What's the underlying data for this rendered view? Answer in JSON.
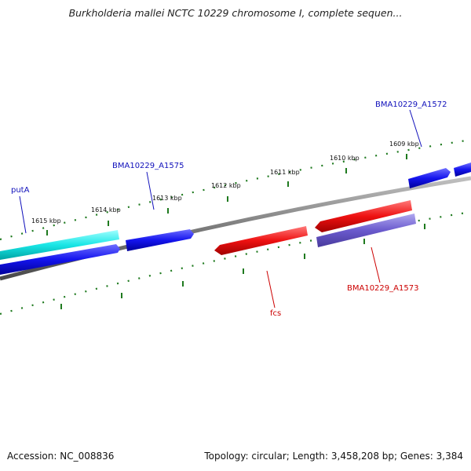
{
  "title": "Burkholderia mallei NCTC 10229 chromosome I, complete sequen...",
  "footer": {
    "accession": "Accession: NC_008836",
    "summary": "Topology: circular; Length: 3,458,208 bp; Genes: 3,384"
  },
  "ticks": {
    "outer": [
      "1609 kbp",
      "1610 kbp",
      "1611 kbp",
      "1612 kbp",
      "1613 kbp",
      "1614 kbp",
      "1615 kbp"
    ]
  },
  "genes": {
    "putA": "putA",
    "bma1575": "BMA10229_A1575",
    "bma1572": "BMA10229_A1572",
    "fcs": "fcs",
    "bma1573": "BMA10229_A1573"
  },
  "colors": {
    "forward_cds": "#0000ee",
    "reverse_cds": "#ee0000",
    "highlight_cds": "#00e0e0",
    "other_cds": "#6a5acd",
    "backbone": "#7a7a7a",
    "tick": "#1f7a1f",
    "label_blue": "#1010bb",
    "label_red": "#cc0000"
  }
}
